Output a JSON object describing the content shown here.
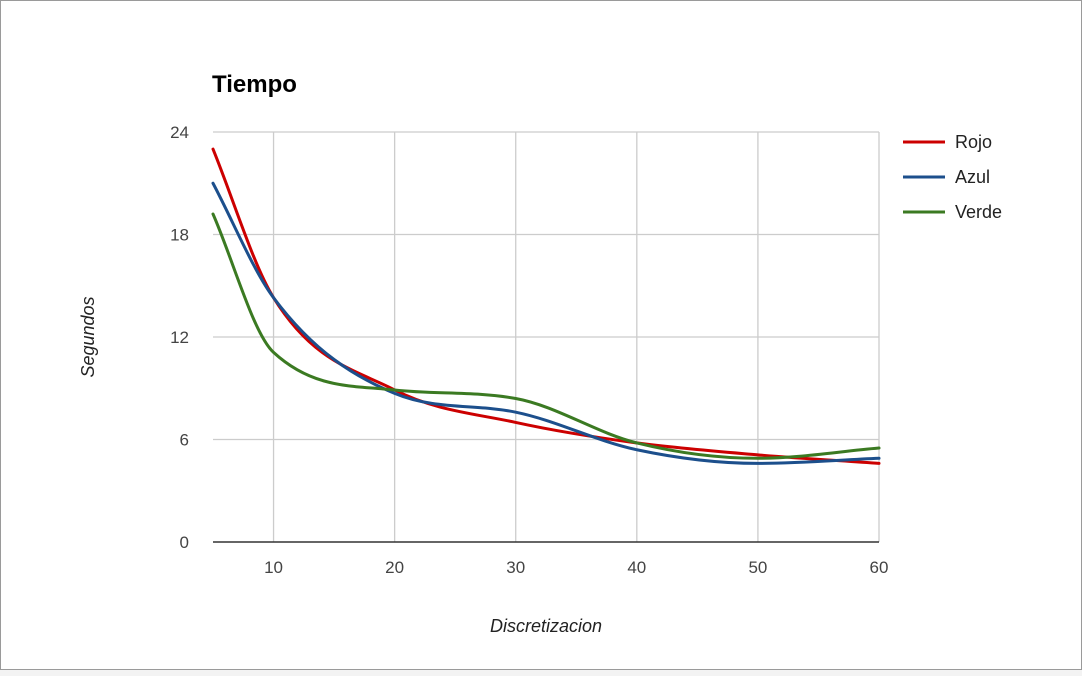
{
  "chart_data": {
    "type": "line",
    "title": "Tiempo",
    "xlabel": "Discretizacion",
    "ylabel": "Segundos",
    "xlim": [
      5,
      60
    ],
    "ylim": [
      0,
      24
    ],
    "x_ticks": [
      10,
      20,
      30,
      40,
      50,
      60
    ],
    "y_ticks": [
      0,
      6,
      12,
      18,
      24
    ],
    "grid": true,
    "smooth": true,
    "legend_position": "right",
    "x": [
      5,
      10,
      20,
      30,
      40,
      50,
      60
    ],
    "series": [
      {
        "name": "Rojo",
        "color": "#cc0000",
        "values": [
          23.0,
          14.3,
          8.9,
          7.0,
          5.8,
          5.1,
          4.6
        ]
      },
      {
        "name": "Azul",
        "color": "#1c4f8c",
        "values": [
          21.0,
          14.3,
          8.7,
          7.6,
          5.4,
          4.6,
          4.9
        ]
      },
      {
        "name": "Verde",
        "color": "#3b7a22",
        "values": [
          19.2,
          11.1,
          8.9,
          8.4,
          5.8,
          4.9,
          5.5
        ]
      }
    ]
  }
}
